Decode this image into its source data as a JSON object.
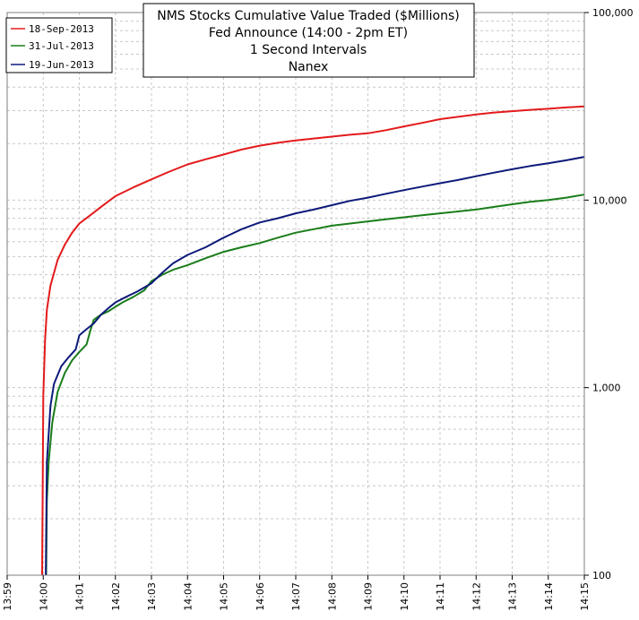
{
  "chart_data": {
    "type": "line",
    "title_lines": [
      "NMS Stocks Cumulative Value Traded ($Millions)",
      "Fed Announce (14:00 - 2pm ET)",
      "1 Second Intervals",
      "Nanex"
    ],
    "xlabel": "",
    "ylabel": "",
    "x_ticks": [
      "13:59",
      "14:00",
      "14:01",
      "14:02",
      "14:03",
      "14:04",
      "14:05",
      "14:06",
      "14:07",
      "14:08",
      "14:09",
      "14:10",
      "14:11",
      "14:12",
      "14:13",
      "14:14",
      "14:15"
    ],
    "x_range_minutes": [
      0,
      16
    ],
    "y_scale": "log",
    "ylim": [
      100,
      100000
    ],
    "y_ticks": [
      "100",
      "1,000",
      "10,000",
      "100,000"
    ],
    "y_tick_values": [
      100,
      1000,
      10000,
      100000
    ],
    "y_axis_side": "right",
    "grid": true,
    "legend_position": "top-left",
    "series": [
      {
        "name": "18-Sep-2013",
        "color": "#e31a1c",
        "points": [
          [
            0.97,
            100
          ],
          [
            1.0,
            900
          ],
          [
            1.05,
            1800
          ],
          [
            1.1,
            2600
          ],
          [
            1.2,
            3500
          ],
          [
            1.4,
            4800
          ],
          [
            1.6,
            5800
          ],
          [
            1.8,
            6700
          ],
          [
            2.0,
            7500
          ],
          [
            2.3,
            8300
          ],
          [
            2.6,
            9200
          ],
          [
            3.0,
            10500
          ],
          [
            3.5,
            11700
          ],
          [
            4.0,
            12900
          ],
          [
            4.5,
            14200
          ],
          [
            5.0,
            15500
          ],
          [
            5.5,
            16500
          ],
          [
            6.0,
            17500
          ],
          [
            6.5,
            18600
          ],
          [
            7.0,
            19500
          ],
          [
            7.5,
            20200
          ],
          [
            8.0,
            20800
          ],
          [
            8.5,
            21300
          ],
          [
            9.0,
            21800
          ],
          [
            9.5,
            22300
          ],
          [
            10.0,
            22700
          ],
          [
            10.5,
            23600
          ],
          [
            11.0,
            24700
          ],
          [
            11.5,
            25800
          ],
          [
            12.0,
            27000
          ],
          [
            12.5,
            27800
          ],
          [
            13.0,
            28600
          ],
          [
            13.5,
            29300
          ],
          [
            14.0,
            29800
          ],
          [
            14.5,
            30300
          ],
          [
            15.0,
            30700
          ],
          [
            15.5,
            31200
          ],
          [
            16.0,
            31600
          ]
        ]
      },
      {
        "name": "31-Jul-2013",
        "color": "#1a7d1a",
        "points": [
          [
            1.08,
            100
          ],
          [
            1.1,
            250
          ],
          [
            1.15,
            400
          ],
          [
            1.25,
            650
          ],
          [
            1.4,
            950
          ],
          [
            1.6,
            1200
          ],
          [
            1.8,
            1400
          ],
          [
            2.0,
            1550
          ],
          [
            2.2,
            1700
          ],
          [
            2.3,
            2000
          ],
          [
            2.4,
            2300
          ],
          [
            2.6,
            2450
          ],
          [
            2.8,
            2550
          ],
          [
            3.0,
            2700
          ],
          [
            3.2,
            2850
          ],
          [
            3.5,
            3050
          ],
          [
            3.8,
            3300
          ],
          [
            4.0,
            3700
          ],
          [
            4.3,
            4000
          ],
          [
            4.6,
            4250
          ],
          [
            5.0,
            4500
          ],
          [
            5.5,
            4900
          ],
          [
            6.0,
            5300
          ],
          [
            6.5,
            5600
          ],
          [
            7.0,
            5900
          ],
          [
            7.5,
            6300
          ],
          [
            8.0,
            6700
          ],
          [
            8.5,
            7000
          ],
          [
            9.0,
            7300
          ],
          [
            9.5,
            7500
          ],
          [
            10.0,
            7700
          ],
          [
            10.5,
            7900
          ],
          [
            11.0,
            8100
          ],
          [
            11.5,
            8300
          ],
          [
            12.0,
            8500
          ],
          [
            12.5,
            8700
          ],
          [
            13.0,
            8900
          ],
          [
            13.5,
            9200
          ],
          [
            14.0,
            9500
          ],
          [
            14.5,
            9800
          ],
          [
            15.0,
            10000
          ],
          [
            15.5,
            10300
          ],
          [
            16.0,
            10700
          ]
        ]
      },
      {
        "name": "19-Jun-2013",
        "color": "#0d1a7a",
        "points": [
          [
            1.07,
            100
          ],
          [
            1.1,
            400
          ],
          [
            1.2,
            800
          ],
          [
            1.3,
            1050
          ],
          [
            1.5,
            1300
          ],
          [
            1.7,
            1450
          ],
          [
            1.9,
            1600
          ],
          [
            2.0,
            1900
          ],
          [
            2.2,
            2050
          ],
          [
            2.4,
            2200
          ],
          [
            2.6,
            2450
          ],
          [
            2.8,
            2650
          ],
          [
            3.0,
            2850
          ],
          [
            3.3,
            3050
          ],
          [
            3.6,
            3250
          ],
          [
            4.0,
            3600
          ],
          [
            4.3,
            4100
          ],
          [
            4.6,
            4600
          ],
          [
            5.0,
            5100
          ],
          [
            5.5,
            5600
          ],
          [
            6.0,
            6300
          ],
          [
            6.5,
            7000
          ],
          [
            7.0,
            7600
          ],
          [
            7.5,
            8000
          ],
          [
            8.0,
            8500
          ],
          [
            8.5,
            8900
          ],
          [
            9.0,
            9400
          ],
          [
            9.5,
            9900
          ],
          [
            10.0,
            10300
          ],
          [
            10.5,
            10800
          ],
          [
            11.0,
            11300
          ],
          [
            11.5,
            11800
          ],
          [
            12.0,
            12300
          ],
          [
            12.5,
            12800
          ],
          [
            13.0,
            13400
          ],
          [
            13.5,
            14000
          ],
          [
            14.0,
            14600
          ],
          [
            14.5,
            15200
          ],
          [
            15.0,
            15700
          ],
          [
            15.5,
            16300
          ],
          [
            16.0,
            17000
          ]
        ]
      }
    ]
  }
}
